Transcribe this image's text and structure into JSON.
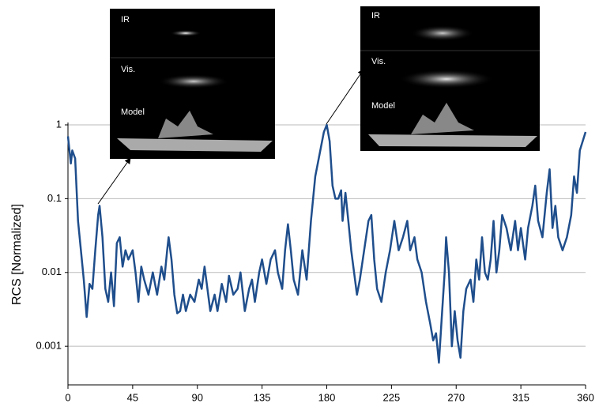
{
  "chart_data": {
    "type": "line",
    "y_label": "RCS [Normalized]",
    "color": "#1f4e8c",
    "log_y": true,
    "grid": true,
    "x": [
      0,
      2,
      3,
      5,
      7,
      9,
      11,
      13,
      15,
      17,
      19,
      21,
      22,
      24,
      26,
      28,
      30,
      32,
      34,
      36,
      38,
      40,
      42,
      45,
      47,
      49,
      51,
      53,
      56,
      59,
      62,
      65,
      67,
      69,
      70,
      72,
      74,
      76,
      78,
      80,
      82,
      85,
      88,
      91,
      93,
      95,
      97,
      99,
      102,
      104,
      107,
      110,
      112,
      115,
      118,
      120,
      123,
      126,
      128,
      130,
      133,
      135,
      138,
      141,
      144,
      146,
      149,
      151,
      153,
      155,
      157,
      160,
      163,
      166,
      169,
      172,
      175,
      178,
      180,
      182,
      184,
      186,
      188,
      190,
      191,
      193,
      195,
      197,
      199,
      201,
      203,
      206,
      209,
      211,
      213,
      215,
      218,
      221,
      224,
      227,
      230,
      233,
      236,
      238,
      241,
      243,
      246,
      249,
      252,
      254,
      256,
      258,
      260,
      262,
      263,
      265,
      267,
      269,
      271,
      273,
      275,
      277,
      280,
      282,
      284,
      286,
      288,
      290,
      292,
      294,
      296,
      298,
      300,
      302,
      305,
      308,
      311,
      313,
      315,
      318,
      320,
      323,
      325,
      327,
      330,
      333,
      335,
      337,
      339,
      341,
      344,
      347,
      350,
      352,
      354,
      356,
      358,
      360
    ],
    "values": [
      0.7,
      0.3,
      0.45,
      0.35,
      0.05,
      0.02,
      0.008,
      0.0025,
      0.007,
      0.006,
      0.02,
      0.06,
      0.08,
      0.03,
      0.006,
      0.004,
      0.01,
      0.0035,
      0.025,
      0.03,
      0.012,
      0.02,
      0.015,
      0.02,
      0.01,
      0.004,
      0.012,
      0.008,
      0.005,
      0.01,
      0.005,
      0.012,
      0.008,
      0.02,
      0.03,
      0.015,
      0.005,
      0.0028,
      0.003,
      0.005,
      0.003,
      0.005,
      0.004,
      0.008,
      0.006,
      0.012,
      0.006,
      0.003,
      0.005,
      0.003,
      0.007,
      0.004,
      0.009,
      0.005,
      0.006,
      0.01,
      0.003,
      0.006,
      0.008,
      0.004,
      0.01,
      0.015,
      0.007,
      0.015,
      0.02,
      0.01,
      0.006,
      0.02,
      0.045,
      0.02,
      0.008,
      0.005,
      0.02,
      0.008,
      0.05,
      0.2,
      0.4,
      0.8,
      1,
      0.6,
      0.15,
      0.1,
      0.1,
      0.13,
      0.05,
      0.12,
      0.05,
      0.02,
      0.01,
      0.005,
      0.008,
      0.02,
      0.05,
      0.06,
      0.015,
      0.006,
      0.004,
      0.01,
      0.02,
      0.05,
      0.02,
      0.03,
      0.05,
      0.02,
      0.03,
      0.015,
      0.01,
      0.004,
      0.002,
      0.0012,
      0.0015,
      0.0006,
      0.0025,
      0.01,
      0.03,
      0.01,
      0.001,
      0.003,
      0.0012,
      0.0007,
      0.003,
      0.006,
      0.008,
      0.004,
      0.015,
      0.008,
      0.03,
      0.01,
      0.008,
      0.015,
      0.05,
      0.01,
      0.02,
      0.06,
      0.04,
      0.02,
      0.05,
      0.02,
      0.04,
      0.015,
      0.04,
      0.08,
      0.15,
      0.05,
      0.03,
      0.12,
      0.25,
      0.04,
      0.08,
      0.03,
      0.02,
      0.03,
      0.06,
      0.2,
      0.12,
      0.45,
      0.6,
      0.8
    ],
    "xlim": [
      0,
      360
    ],
    "xticks": [
      0,
      45,
      90,
      135,
      180,
      225,
      270,
      315,
      360
    ],
    "ylim": [
      0.0003,
      1
    ],
    "yticks": [
      1,
      0.1,
      0.01,
      0.001
    ],
    "insets": [
      [
        "IR",
        "Vis.",
        "Model"
      ],
      [
        "IR",
        "Vis.",
        "Model"
      ]
    ]
  }
}
